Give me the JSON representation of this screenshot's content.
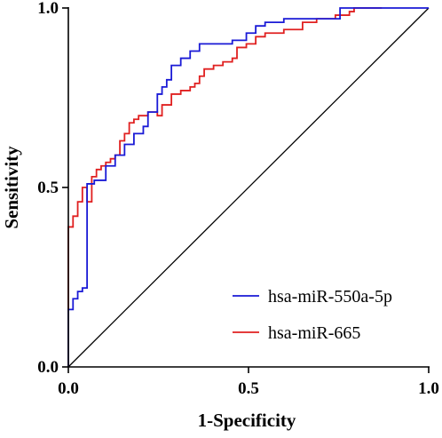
{
  "chart_data": {
    "type": "line",
    "title": "",
    "xlabel": "1-Specificity",
    "ylabel": "Sensitivity",
    "xlim": [
      0,
      1
    ],
    "ylim": [
      0,
      1
    ],
    "x_ticks": [
      "0.0",
      "0.5",
      "1.0"
    ],
    "y_ticks": [
      "0.0",
      "0.5",
      "1.0"
    ],
    "grid": false,
    "legend_position": "bottom-right",
    "reference_line": {
      "x": [
        0,
        1
      ],
      "y": [
        0,
        1
      ],
      "color": "#000000"
    },
    "series": [
      {
        "name": "hsa-miR-550a-5p",
        "color": "#1a1ad6",
        "x": [
          0,
          0,
          0.013,
          0.013,
          0.026,
          0.026,
          0.039,
          0.039,
          0.052,
          0.052,
          0.072,
          0.072,
          0.104,
          0.104,
          0.13,
          0.13,
          0.156,
          0.156,
          0.182,
          0.182,
          0.208,
          0.208,
          0.221,
          0.221,
          0.247,
          0.247,
          0.26,
          0.26,
          0.273,
          0.273,
          0.286,
          0.286,
          0.312,
          0.312,
          0.338,
          0.338,
          0.364,
          0.364,
          0.455,
          0.455,
          0.494,
          0.494,
          0.52,
          0.52,
          0.546,
          0.546,
          0.598,
          0.598,
          0.754,
          0.754,
          1.0
        ],
        "y": [
          0,
          0.16,
          0.16,
          0.19,
          0.19,
          0.21,
          0.21,
          0.22,
          0.22,
          0.51,
          0.51,
          0.52,
          0.52,
          0.56,
          0.56,
          0.59,
          0.59,
          0.62,
          0.62,
          0.65,
          0.65,
          0.67,
          0.67,
          0.71,
          0.71,
          0.76,
          0.76,
          0.78,
          0.78,
          0.8,
          0.8,
          0.84,
          0.84,
          0.86,
          0.86,
          0.88,
          0.88,
          0.9,
          0.9,
          0.91,
          0.91,
          0.93,
          0.93,
          0.95,
          0.95,
          0.96,
          0.96,
          0.97,
          0.97,
          1.0,
          1.0
        ]
      },
      {
        "name": "hsa-miR-665",
        "color": "#e02020",
        "x": [
          0,
          0,
          0.013,
          0.013,
          0.026,
          0.026,
          0.039,
          0.039,
          0.052,
          0.052,
          0.065,
          0.065,
          0.078,
          0.078,
          0.091,
          0.091,
          0.104,
          0.104,
          0.117,
          0.117,
          0.13,
          0.13,
          0.143,
          0.143,
          0.156,
          0.156,
          0.169,
          0.169,
          0.182,
          0.182,
          0.195,
          0.195,
          0.221,
          0.221,
          0.247,
          0.247,
          0.26,
          0.26,
          0.286,
          0.286,
          0.312,
          0.312,
          0.338,
          0.338,
          0.351,
          0.351,
          0.364,
          0.364,
          0.377,
          0.377,
          0.403,
          0.403,
          0.429,
          0.429,
          0.455,
          0.455,
          0.468,
          0.468,
          0.494,
          0.494,
          0.52,
          0.52,
          0.546,
          0.546,
          0.598,
          0.598,
          0.65,
          0.65,
          0.689,
          0.689,
          0.741,
          0.741,
          0.78,
          0.78,
          0.793,
          0.793,
          0.87
        ],
        "y": [
          0,
          0.39,
          0.39,
          0.42,
          0.42,
          0.46,
          0.46,
          0.5,
          0.5,
          0.46,
          0.46,
          0.53,
          0.53,
          0.55,
          0.55,
          0.56,
          0.56,
          0.57,
          0.57,
          0.58,
          0.58,
          0.59,
          0.59,
          0.63,
          0.63,
          0.65,
          0.65,
          0.68,
          0.68,
          0.69,
          0.69,
          0.7,
          0.7,
          0.71,
          0.71,
          0.7,
          0.7,
          0.73,
          0.73,
          0.76,
          0.76,
          0.77,
          0.77,
          0.78,
          0.78,
          0.79,
          0.79,
          0.81,
          0.81,
          0.83,
          0.83,
          0.84,
          0.84,
          0.85,
          0.85,
          0.86,
          0.86,
          0.89,
          0.89,
          0.9,
          0.9,
          0.92,
          0.92,
          0.93,
          0.93,
          0.94,
          0.94,
          0.96,
          0.96,
          0.97,
          0.97,
          0.98,
          0.98,
          0.99,
          0.99,
          1.0,
          1.0
        ]
      }
    ]
  }
}
